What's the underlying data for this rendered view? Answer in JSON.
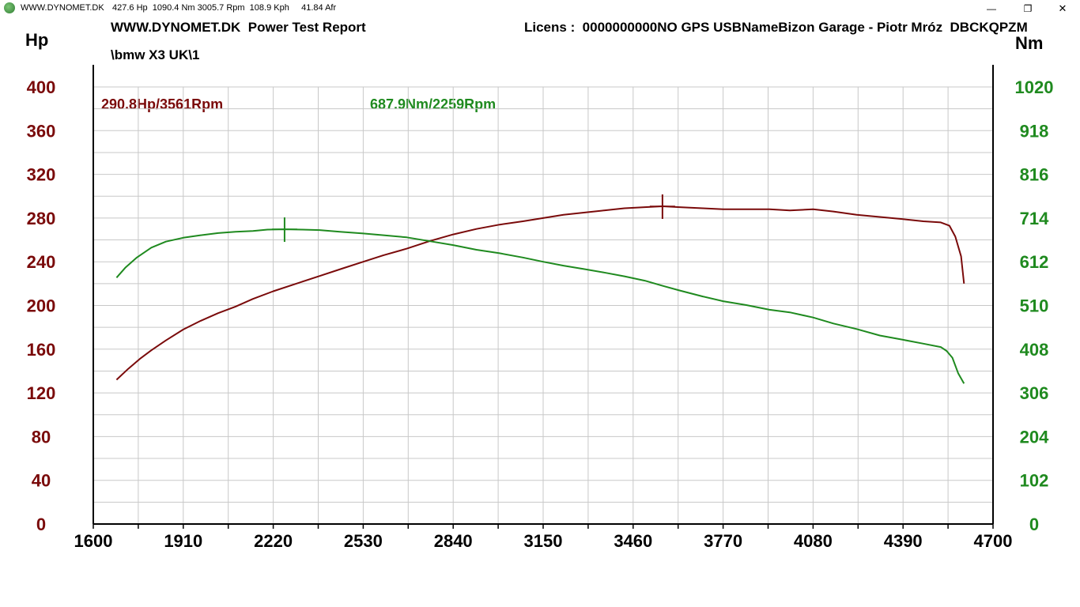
{
  "window": {
    "title": "WWW.DYNOMET.DK",
    "stats": "427.6 Hp  1090.4 Nm 3005.7 Rpm  108.9 Kph     41.84 Afr",
    "controls": {
      "minimize": "—",
      "restore": "❐",
      "close": "✕"
    }
  },
  "header": {
    "report_title": "WWW.DYNOMET.DK  Power Test Report",
    "license": "Licens :  0000000000NO GPS USBNameBizon Garage - Piotr Mróz  DBCKQPZM",
    "run_path": "\\bmw X3 UK\\1"
  },
  "units": {
    "left": "Hp",
    "right": "Nm"
  },
  "peaks": {
    "power_label": "290.8Hp/3561Rpm",
    "torque_label": "687.9Nm/2259Rpm"
  },
  "colors": {
    "power": "#7a0a0a",
    "torque": "#1f8a1f",
    "grid": "#c8c8c8",
    "axis": "#000000",
    "left_tick_text": "#7a0a0a",
    "right_tick_text": "#1f8a1f"
  },
  "chart_data": {
    "type": "line",
    "x_label": "",
    "x_ticks": [
      1600,
      1910,
      2220,
      2530,
      2840,
      3150,
      3460,
      3770,
      4080,
      4390,
      4700
    ],
    "xlim": [
      1600,
      4700
    ],
    "y_left": {
      "label": "Hp",
      "lim": [
        0,
        400
      ],
      "ticks": [
        0,
        40,
        80,
        120,
        160,
        200,
        240,
        280,
        320,
        360,
        400
      ]
    },
    "y_right": {
      "label": "Nm",
      "lim": [
        0,
        1020
      ],
      "ticks": [
        0,
        102,
        204,
        306,
        408,
        510,
        612,
        714,
        816,
        918,
        1020
      ]
    },
    "grid": true,
    "series": [
      {
        "axis": "left",
        "x": [
          1680,
          1720,
          1760,
          1800,
          1850,
          1910,
          1970,
          2030,
          2090,
          2150,
          2220,
          2300,
          2380,
          2460,
          2530,
          2600,
          2680,
          2760,
          2840,
          2920,
          3000,
          3080,
          3150,
          3220,
          3290,
          3360,
          3430,
          3500,
          3561,
          3620,
          3700,
          3770,
          3850,
          3930,
          4000,
          4080,
          4150,
          4230,
          4310,
          4390,
          4460,
          4520,
          4550,
          4570,
          4590,
          4600
        ],
        "y": [
          132,
          142,
          151,
          159,
          168,
          178,
          186,
          193,
          199,
          206,
          213,
          220,
          227,
          234,
          240,
          246,
          252,
          259,
          265,
          270,
          274,
          277,
          280,
          283,
          285,
          287,
          289,
          290,
          290.8,
          290,
          289,
          288,
          288,
          288,
          287,
          288,
          286,
          283,
          281,
          279,
          277,
          276,
          273,
          263,
          245,
          220
        ]
      },
      {
        "axis": "right",
        "x": [
          1680,
          1710,
          1750,
          1800,
          1850,
          1910,
          1970,
          2030,
          2090,
          2150,
          2200,
          2259,
          2320,
          2380,
          2450,
          2530,
          2600,
          2680,
          2760,
          2840,
          2920,
          3000,
          3080,
          3150,
          3220,
          3290,
          3360,
          3430,
          3500,
          3561,
          3620,
          3700,
          3770,
          3850,
          3930,
          4000,
          4080,
          4150,
          4230,
          4310,
          4390,
          4460,
          4520,
          4540,
          4560,
          4580,
          4600
        ],
        "y": [
          575,
          598,
          622,
          645,
          659,
          668,
          674,
          679,
          682,
          684,
          687,
          687.9,
          687,
          686,
          682,
          678,
          674,
          669,
          660,
          651,
          640,
          632,
          622,
          612,
          603,
          595,
          587,
          578,
          568,
          556,
          545,
          531,
          520,
          511,
          500,
          494,
          482,
          468,
          455,
          440,
          430,
          421,
          413,
          404,
          388,
          352,
          328
        ]
      }
    ],
    "peak_markers": [
      {
        "axis": "left",
        "x": 3561,
        "y": 290.8
      },
      {
        "axis": "right",
        "x": 2259,
        "y": 687.9
      }
    ]
  }
}
